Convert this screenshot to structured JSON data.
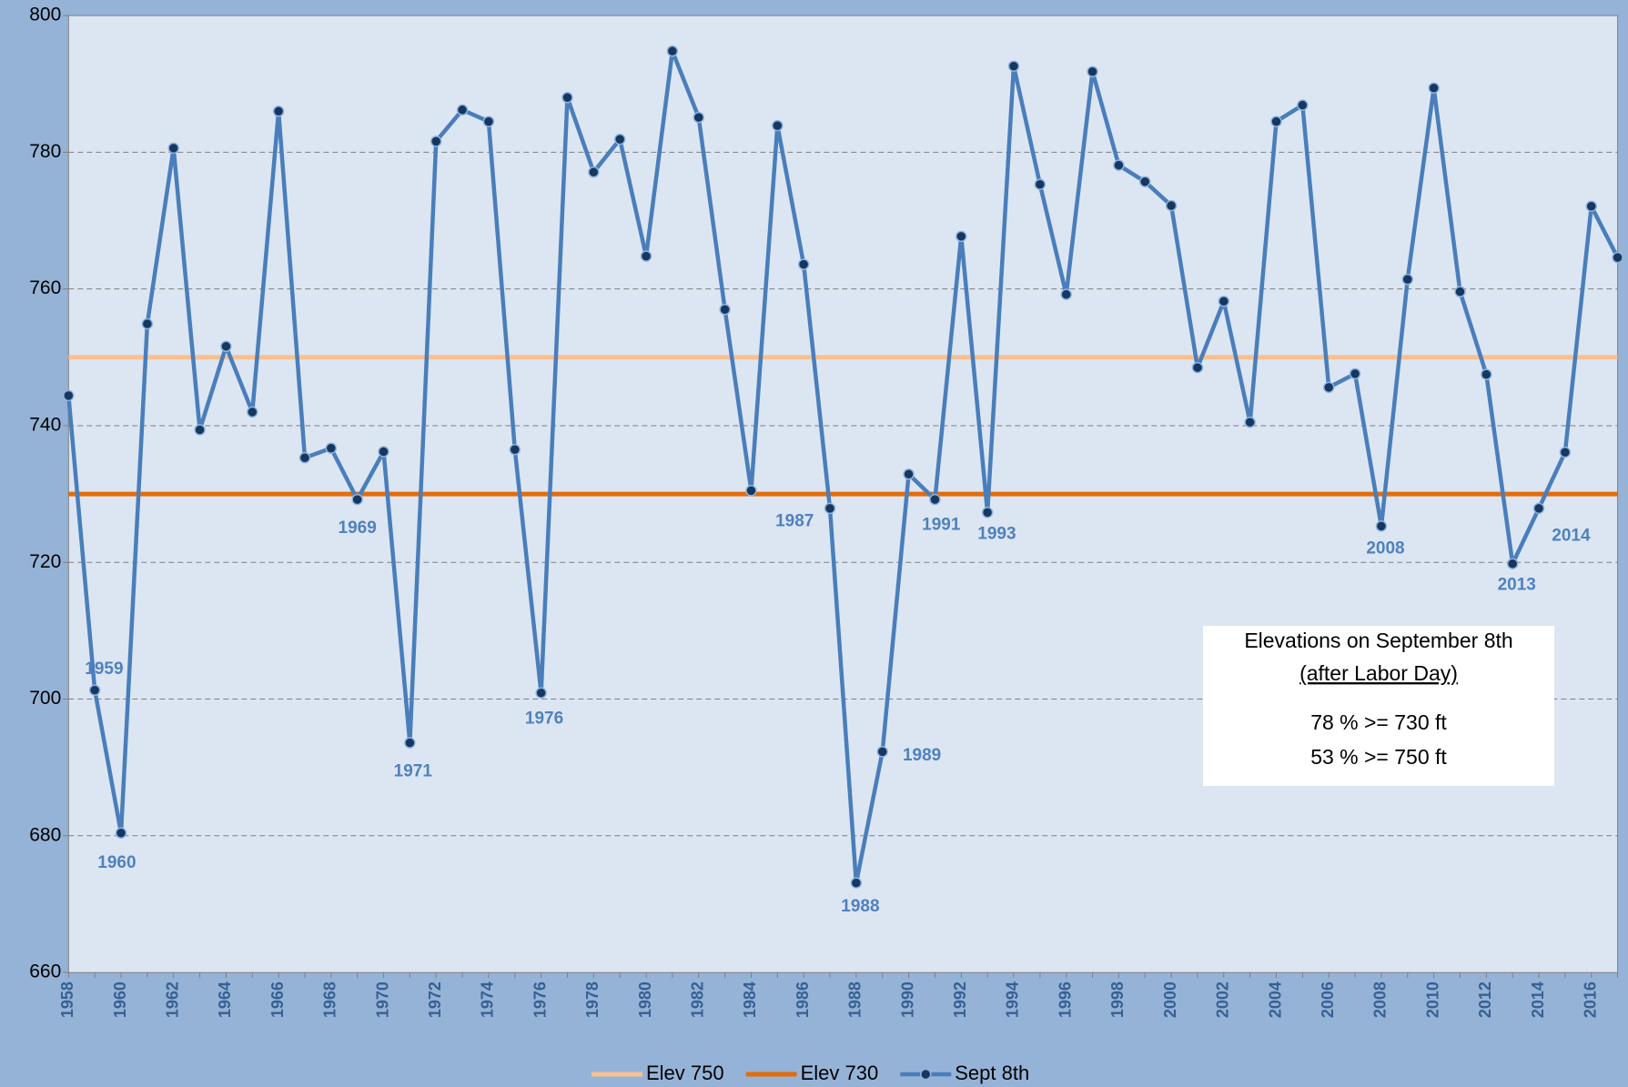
{
  "chart_data": {
    "type": "line",
    "x": [
      1958,
      1959,
      1960,
      1961,
      1962,
      1963,
      1964,
      1965,
      1966,
      1967,
      1968,
      1969,
      1970,
      1971,
      1972,
      1973,
      1974,
      1975,
      1976,
      1977,
      1978,
      1979,
      1980,
      1981,
      1982,
      1983,
      1984,
      1985,
      1986,
      1987,
      1988,
      1989,
      1990,
      1991,
      1992,
      1993,
      1994,
      1995,
      1996,
      1997,
      1998,
      1999,
      2000,
      2001,
      2002,
      2003,
      2004,
      2005,
      2006,
      2007,
      2008,
      2009,
      2010,
      2011,
      2012,
      2013,
      2014,
      2015,
      2016,
      2017
    ],
    "series": [
      {
        "name": "Sept 8th",
        "color": "#4a7ebb",
        "marker_color": "#17375e",
        "values": [
          744.4,
          701.3,
          680.4,
          754.9,
          780.6,
          739.4,
          751.6,
          742.0,
          786.0,
          735.3,
          736.7,
          729.2,
          736.2,
          693.6,
          781.6,
          786.2,
          784.5,
          736.5,
          700.9,
          788.0,
          777.1,
          781.9,
          764.8,
          794.8,
          785.1,
          757.0,
          730.5,
          783.9,
          763.6,
          727.9,
          673.1,
          692.3,
          732.9,
          729.2,
          767.7,
          727.3,
          792.6,
          775.3,
          759.2,
          791.8,
          778.1,
          775.7,
          772.2,
          748.5,
          758.2,
          740.5,
          784.5,
          786.9,
          745.6,
          747.6,
          725.3,
          761.4,
          789.4,
          759.6,
          747.5,
          719.8,
          727.9,
          736.1,
          772.1,
          764.6
        ]
      }
    ],
    "reference_lines": [
      {
        "name": "Elev 750",
        "value": 750,
        "color": "#fac090"
      },
      {
        "name": "Elev 730",
        "value": 730,
        "color": "#e46c0a"
      }
    ],
    "annotations": [
      {
        "label": "1959",
        "x": 1959
      },
      {
        "label": "1960",
        "x": 1960
      },
      {
        "label": "1969",
        "x": 1969
      },
      {
        "label": "1971",
        "x": 1971
      },
      {
        "label": "1976",
        "x": 1976
      },
      {
        "label": "1987",
        "x": 1987
      },
      {
        "label": "1988",
        "x": 1988
      },
      {
        "label": "1989",
        "x": 1989
      },
      {
        "label": "1991",
        "x": 1991
      },
      {
        "label": "1993",
        "x": 1993
      },
      {
        "label": "2008",
        "x": 2008
      },
      {
        "label": "2013",
        "x": 2013
      },
      {
        "label": "2014",
        "x": 2014
      }
    ],
    "textbox": {
      "title": "Elevations on September 8th",
      "subtitle": "(after Labor Day)",
      "lines": [
        "78 % >= 730 ft",
        "53 % >= 750 ft"
      ]
    },
    "xlim": [
      1958,
      2017
    ],
    "xticks": [
      1958,
      1960,
      1962,
      1964,
      1966,
      1968,
      1970,
      1972,
      1974,
      1976,
      1978,
      1980,
      1982,
      1984,
      1986,
      1988,
      1990,
      1992,
      1994,
      1996,
      1998,
      2000,
      2002,
      2004,
      2006,
      2008,
      2010,
      2012,
      2014,
      2016
    ],
    "ylim": [
      660,
      800
    ],
    "yticks": [
      660,
      680,
      700,
      720,
      740,
      760,
      780,
      800
    ],
    "grid": true
  }
}
